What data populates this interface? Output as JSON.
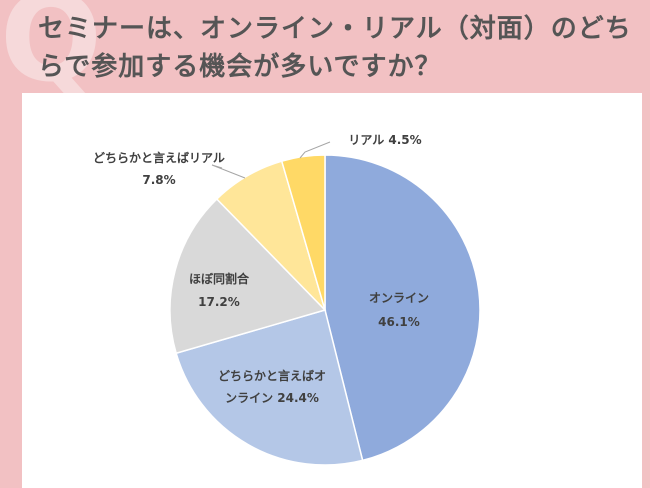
{
  "header": {
    "title": "セミナーは、オンライン・リアル（対面）のどちらで参加する機会が多いですか？",
    "q_mark": "Q"
  },
  "chart_data": {
    "type": "pie",
    "start": "top",
    "direction": "clockwise",
    "categories": [
      "オンライン",
      "どちらかと言えばオンライン",
      "ほぼ同割合",
      "どちらかと言えばリアル",
      "リアル"
    ],
    "values": [
      46.1,
      24.4,
      17.2,
      7.8,
      4.5
    ],
    "labels": [
      [
        "オンライン",
        "46.1%"
      ],
      [
        "どちらかと言えばオ",
        "ンライン 24.4%"
      ],
      [
        "ほぼ同割合",
        "17.2%"
      ],
      [
        "どちらかと言えばリアル",
        "7.8%"
      ],
      [
        "リアル 4.5%"
      ]
    ],
    "colors": [
      "#8faadc",
      "#b4c7e7",
      "#d9d9d9",
      "#ffe699",
      "#ffd966"
    ]
  }
}
